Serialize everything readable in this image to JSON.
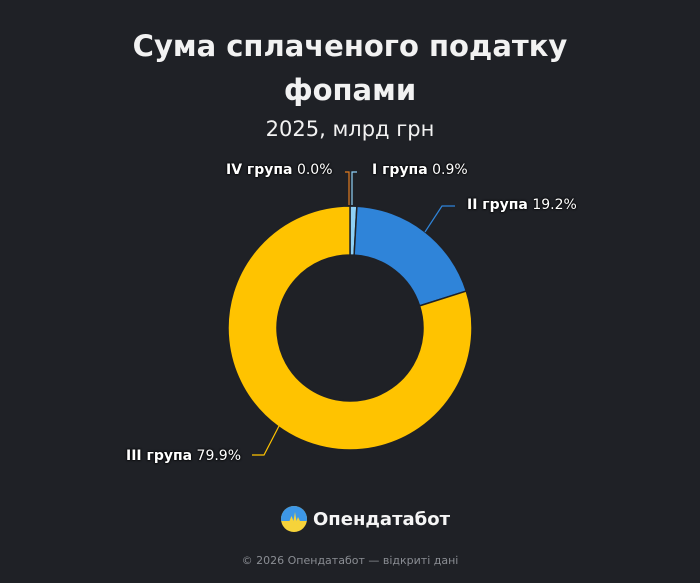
{
  "header": {
    "title_line1": "Сума сплаченого податку",
    "title_line2": "фопами",
    "subtitle": "2025, млрд грн"
  },
  "labels": [
    {
      "name": "IV група",
      "value": "0.0%"
    },
    {
      "name": "I група",
      "value": "0.9%"
    },
    {
      "name": "II група",
      "value": "19.2%"
    },
    {
      "name": "III група",
      "value": "79.9%"
    }
  ],
  "brand": {
    "name": "Опендатабот",
    "icon": "opendatabot-logo-icon"
  },
  "footer": {
    "text": "© 2026 Опендатабот — відкриті дані"
  },
  "colors": {
    "background": "#1f2126",
    "group_I": "#8fd0f5",
    "group_II": "#2f84d9",
    "group_III": "#ffc300",
    "group_IV": "#e07b1f"
  },
  "chart_data": {
    "type": "pie",
    "title": "Сума сплаченого податку фопами",
    "subtitle": "2025, млрд грн",
    "donut": true,
    "categories": [
      "I група",
      "II група",
      "III група",
      "IV група"
    ],
    "values": [
      0.9,
      19.2,
      79.9,
      0.0
    ],
    "unit": "%",
    "colors": [
      "#8fd0f5",
      "#2f84d9",
      "#ffc300",
      "#e07b1f"
    ],
    "legend": "none (outside labels with leader lines)"
  }
}
